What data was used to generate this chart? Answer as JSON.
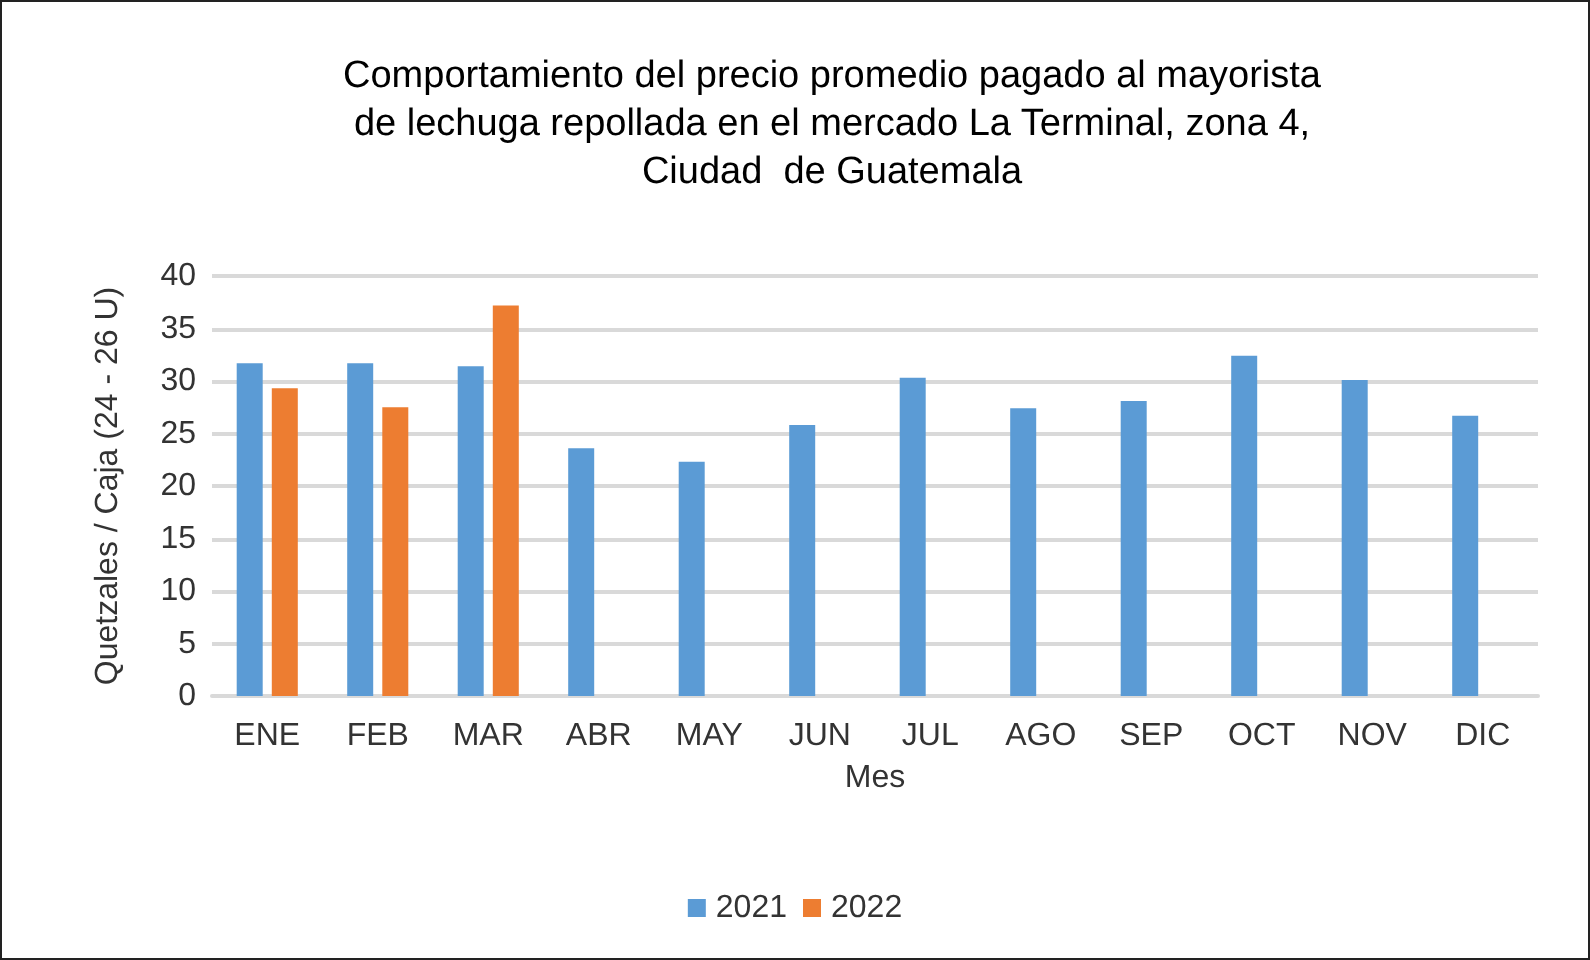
{
  "chart_data": {
    "type": "bar",
    "title": "Comportamiento del precio promedio pagado al mayorista\nde lechuga repollada en el mercado La Terminal, zona 4,\nCiudad  de Guatemala",
    "xlabel": "Mes",
    "ylabel": "Quetzales / Caja (24 - 26 U)",
    "categories": [
      "ENE",
      "FEB",
      "MAR",
      "ABR",
      "MAY",
      "JUN",
      "JUL",
      "AGO",
      "SEP",
      "OCT",
      "NOV",
      "DIC"
    ],
    "series": [
      {
        "name": "2021",
        "color": "#5b9bd5",
        "values": [
          31.7,
          31.7,
          31.4,
          23.6,
          22.3,
          25.8,
          30.3,
          27.4,
          28.1,
          32.4,
          30.1,
          26.7
        ]
      },
      {
        "name": "2022",
        "color": "#ed7d31",
        "values": [
          29.3,
          27.5,
          37.2,
          null,
          null,
          null,
          null,
          null,
          null,
          null,
          null,
          null
        ]
      }
    ],
    "ylim": [
      0,
      40
    ],
    "yticks": [
      0,
      5,
      10,
      15,
      20,
      25,
      30,
      35,
      40
    ],
    "grid": "y",
    "legend": "bottom"
  }
}
